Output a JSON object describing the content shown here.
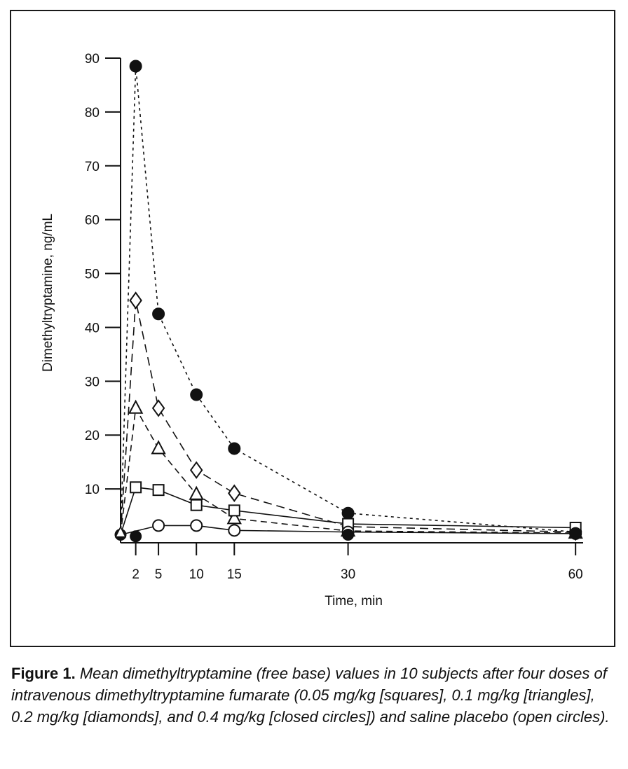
{
  "chart_data": {
    "type": "line",
    "title": "",
    "xlabel": "Time, min",
    "ylabel": "Dimethyltryptamine, ng/mL",
    "xlim": [
      0,
      61
    ],
    "ylim": [
      0,
      90
    ],
    "xticks": [
      2,
      5,
      10,
      15,
      30,
      60
    ],
    "yticks": [
      10,
      20,
      30,
      40,
      50,
      60,
      70,
      80,
      90
    ],
    "grid": false,
    "legend": "none",
    "series": [
      {
        "marker": "closed-circle",
        "dash": "4,5",
        "points": [
          [
            0,
            1.5
          ],
          [
            2,
            88.5
          ],
          [
            5,
            42.5
          ],
          [
            10,
            27.5
          ],
          [
            15,
            17.5
          ],
          [
            30,
            5.5
          ],
          [
            60,
            2.0
          ]
        ]
      },
      {
        "marker": "diamond",
        "dash": "12,7",
        "points": [
          [
            0,
            1.5
          ],
          [
            2,
            45
          ],
          [
            5,
            25
          ],
          [
            10,
            13.5
          ],
          [
            15,
            9.2
          ],
          [
            30,
            3.0
          ],
          [
            60,
            2.0
          ]
        ]
      },
      {
        "marker": "triangle",
        "dash": "9,6",
        "points": [
          [
            0,
            1.5
          ],
          [
            2,
            25
          ],
          [
            5,
            17.5
          ],
          [
            10,
            9
          ],
          [
            15,
            4.5
          ],
          [
            30,
            2.2
          ],
          [
            60,
            1.8
          ]
        ]
      },
      {
        "marker": "square",
        "dash": "",
        "points": [
          [
            0,
            1.5
          ],
          [
            2,
            10.3
          ],
          [
            5,
            9.8
          ],
          [
            10,
            7
          ],
          [
            15,
            6
          ],
          [
            30,
            3.5
          ],
          [
            60,
            2.8
          ]
        ]
      },
      {
        "marker": "open-circle",
        "dash": "",
        "points": [
          [
            0,
            1.5
          ],
          [
            5,
            3.2
          ],
          [
            10,
            3.2
          ],
          [
            15,
            2.3
          ],
          [
            30,
            2.0
          ],
          [
            60,
            1.7
          ]
        ]
      }
    ],
    "baseline_points": [
      [
        2,
        1.2
      ],
      [
        30,
        1.5
      ],
      [
        60,
        1.8
      ]
    ]
  },
  "caption": {
    "label": "Figure 1.",
    "text": "Mean dimethyltryptamine (free base) values in 10 subjects after four doses of intravenous dimethyltryptamine fumarate (0.05 mg/kg [squares], 0.1 mg/kg [triangles], 0.2 mg/kg [diamonds], and 0.4 mg/kg [closed circles]) and saline placebo (open circles)."
  }
}
